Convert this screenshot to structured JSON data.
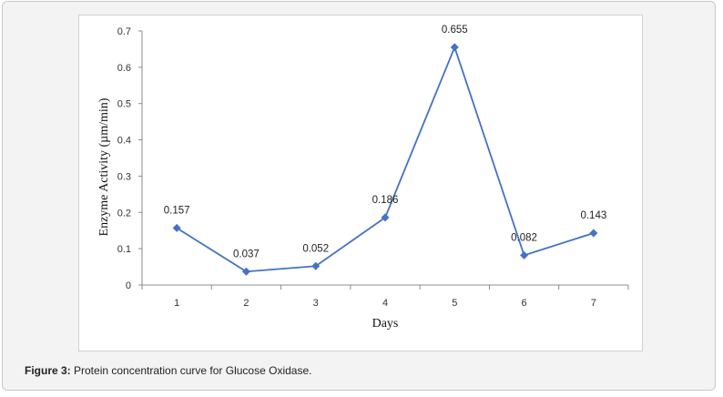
{
  "caption": {
    "label": "Figure 3:",
    "text": " Protein concentration curve for Glucose Oxidase."
  },
  "chart_data": {
    "type": "line",
    "title": "",
    "xlabel": "Days",
    "ylabel": "Enzyme Activity (µm/min)",
    "categories": [
      "1",
      "2",
      "3",
      "4",
      "5",
      "6",
      "7"
    ],
    "series": [
      {
        "values": [
          0.157,
          0.037,
          0.052,
          0.186,
          0.655,
          0.082,
          0.143
        ],
        "data_labels": [
          "0.157",
          "0.037",
          "0.052",
          "0.186",
          "0.655",
          "0.082",
          "0.143"
        ],
        "color": "#4472c4",
        "marker": "diamond"
      }
    ],
    "ylim": [
      0,
      0.7
    ],
    "yticks": [
      "0",
      "0.1",
      "0.2",
      "0.3",
      "0.4",
      "0.5",
      "0.6",
      "0.7"
    ],
    "grid": false,
    "legend": "none"
  }
}
